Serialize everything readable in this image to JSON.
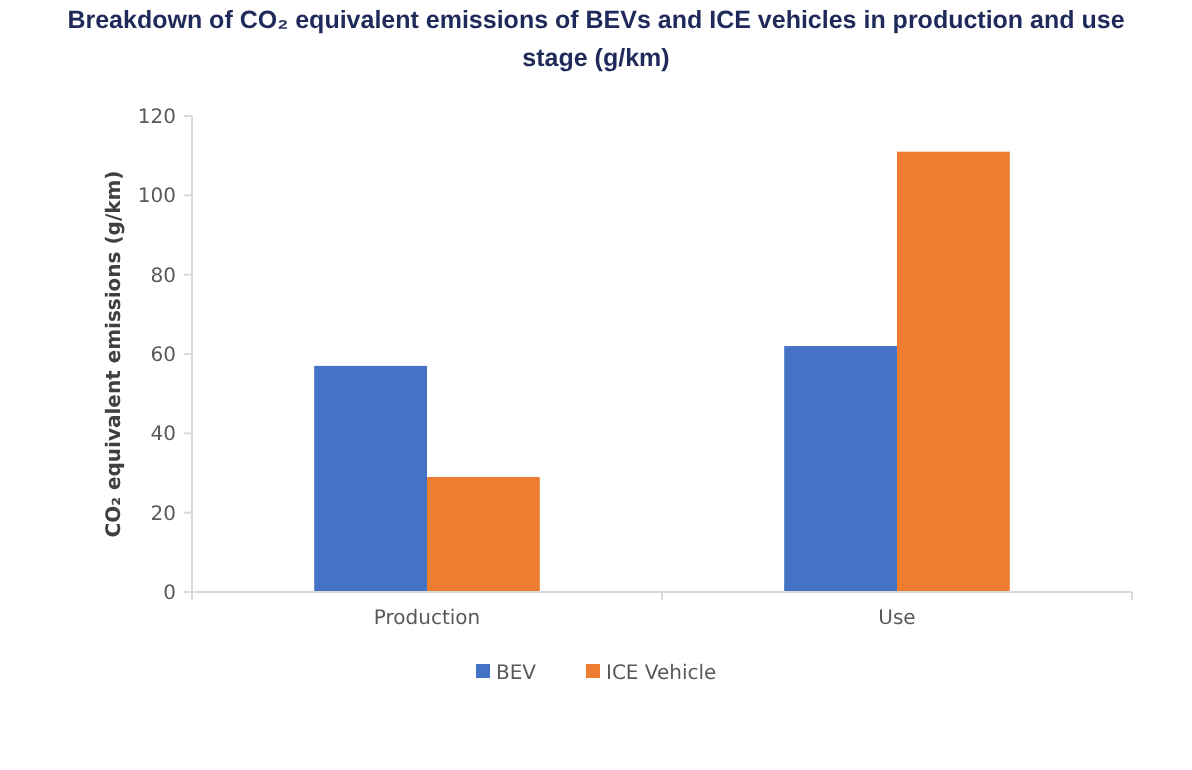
{
  "chart_data": {
    "type": "bar",
    "title": "Breakdown of CO₂ equivalent emissions of BEVs and ICE vehicles in production and use stage (g/km)",
    "ylabel": "CO₂ equivalent emissions (g/km)",
    "categories": [
      "Production",
      "Use"
    ],
    "series": [
      {
        "name": "BEV",
        "color": "#4472c4",
        "values": [
          57,
          62
        ]
      },
      {
        "name": "ICE Vehicle",
        "color": "#ed7d31",
        "values": [
          29,
          111
        ]
      }
    ],
    "ylim": [
      0,
      120
    ],
    "yticks": [
      0,
      20,
      40,
      60,
      80,
      100,
      120
    ],
    "grid": false,
    "legend": "bottom"
  }
}
